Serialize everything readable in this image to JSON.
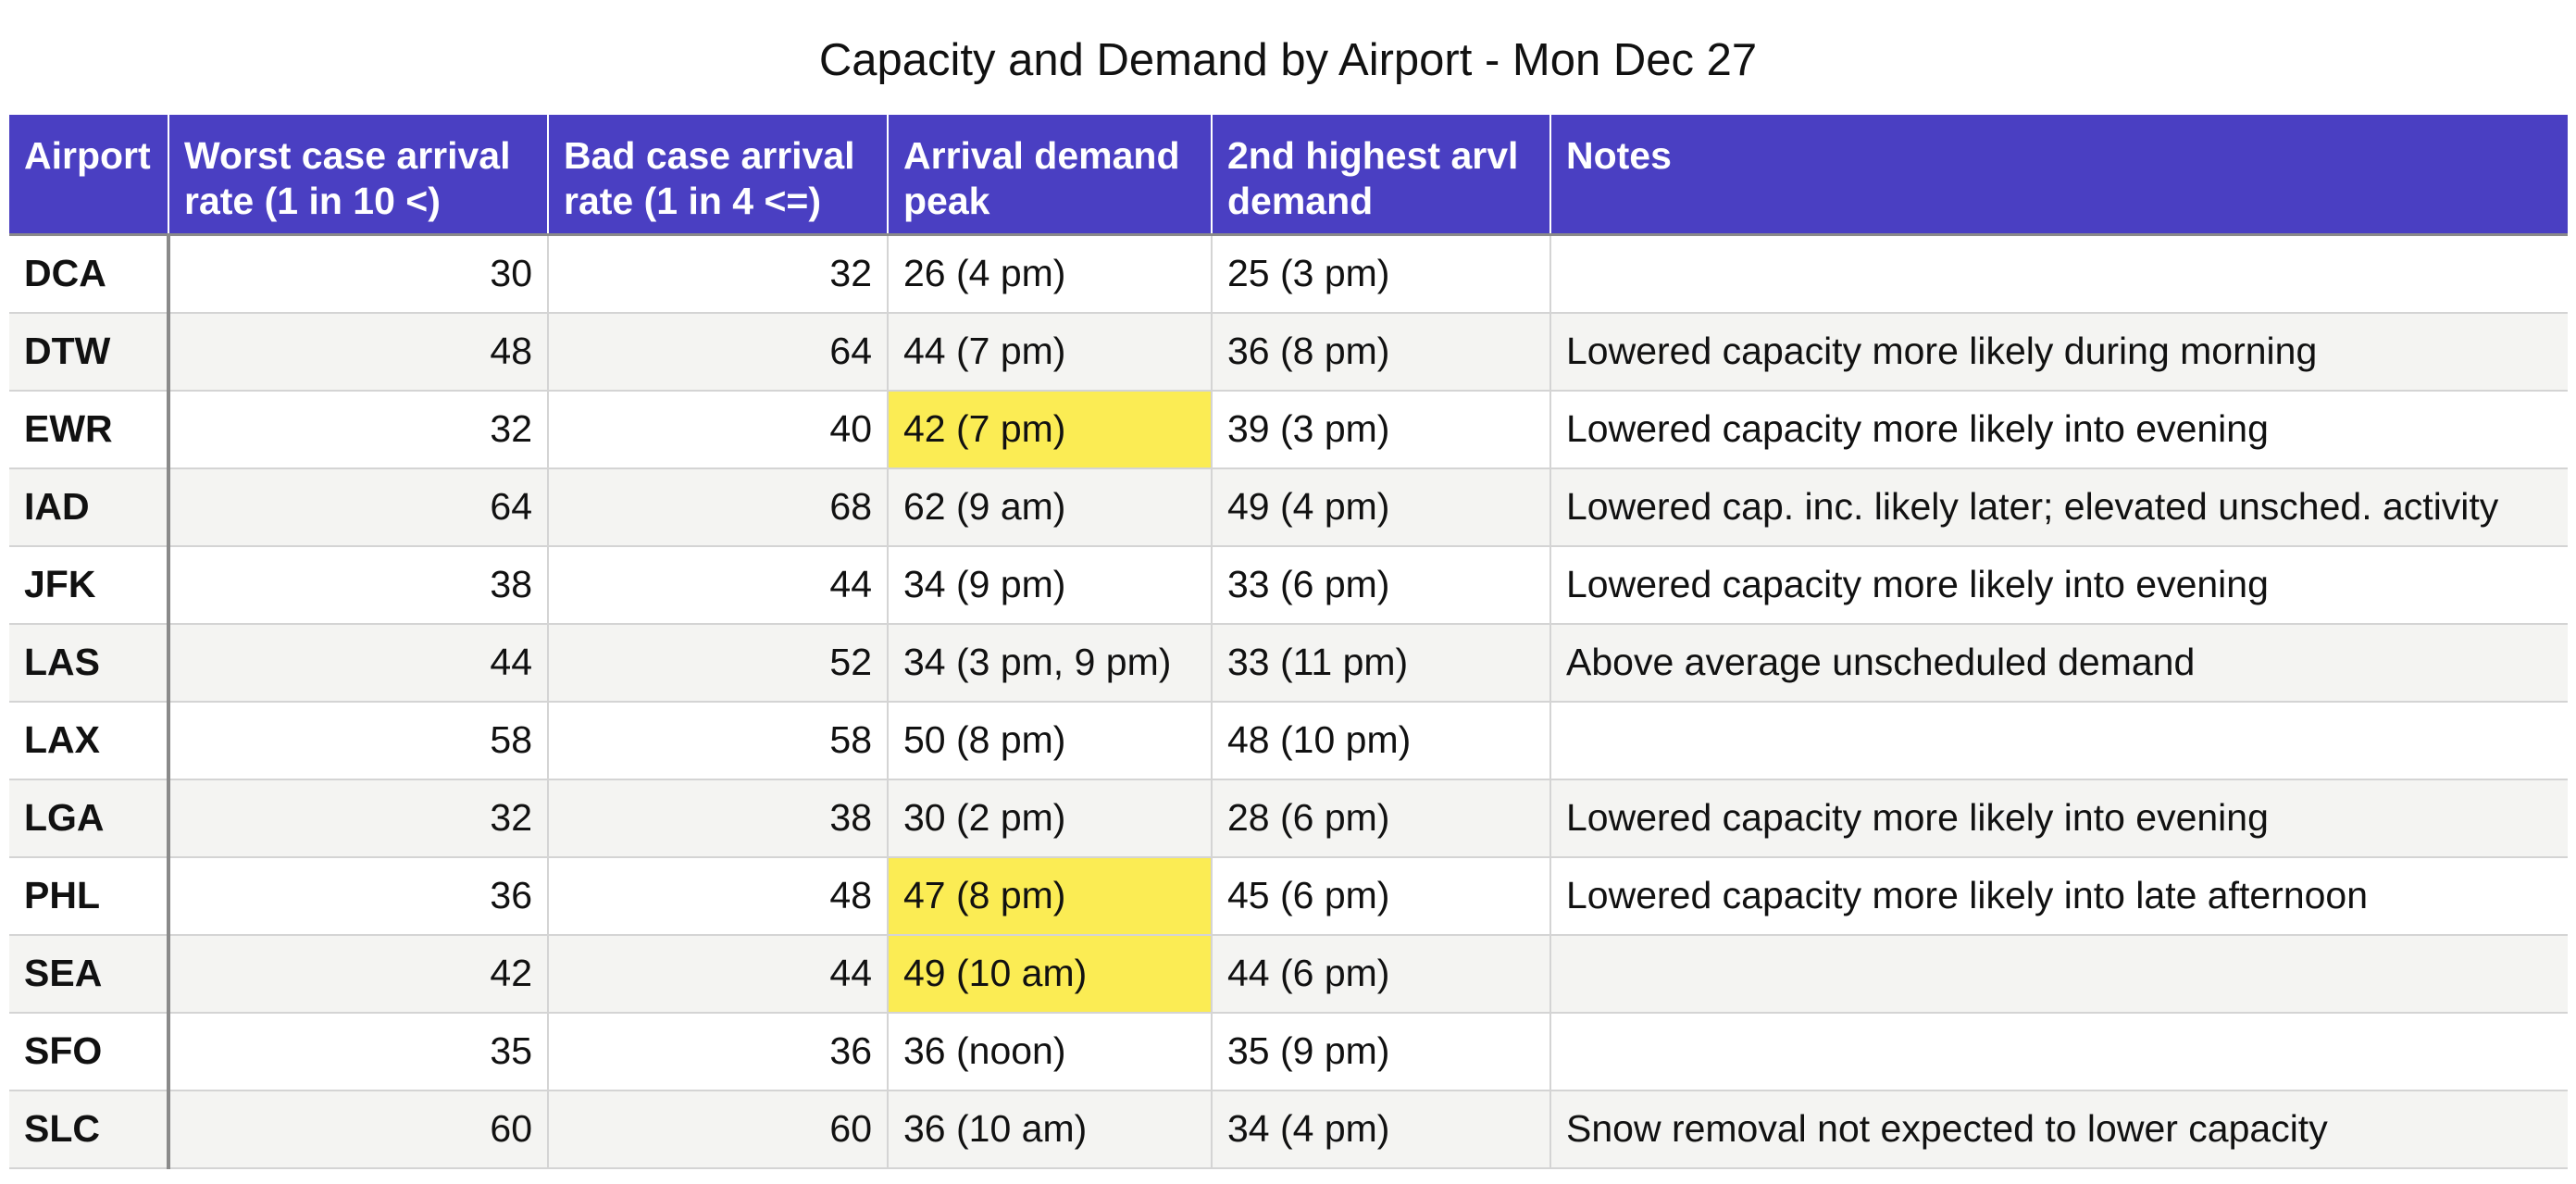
{
  "title": "Capacity and Demand by Airport - Mon Dec 27",
  "headers": [
    "Airport",
    "Worst case arrival rate (1 in 10 <)",
    "Bad case arrival rate (1 in 4 <=)",
    "Arrival demand peak",
    "2nd highest arvl demand",
    "Notes"
  ],
  "colors": {
    "header_bg": "#4a3fc2",
    "header_text": "#ffffff",
    "highlight": "#fbec54",
    "alt_row": "#f4f4f2"
  },
  "rows": [
    {
      "airport": "DCA",
      "worst": "30",
      "bad": "32",
      "peak": "26 (4 pm)",
      "peak_highlight": false,
      "second": "25 (3 pm)",
      "notes": ""
    },
    {
      "airport": "DTW",
      "worst": "48",
      "bad": "64",
      "peak": "44 (7 pm)",
      "peak_highlight": false,
      "second": "36 (8 pm)",
      "notes": "Lowered capacity more likely during morning"
    },
    {
      "airport": "EWR",
      "worst": "32",
      "bad": "40",
      "peak": "42 (7 pm)",
      "peak_highlight": true,
      "second": "39 (3 pm)",
      "notes": "Lowered capacity more likely into evening"
    },
    {
      "airport": "IAD",
      "worst": "64",
      "bad": "68",
      "peak": "62 (9 am)",
      "peak_highlight": false,
      "second": "49 (4 pm)",
      "notes": "Lowered cap. inc. likely later; elevated unsched. activity"
    },
    {
      "airport": "JFK",
      "worst": "38",
      "bad": "44",
      "peak": "34 (9 pm)",
      "peak_highlight": false,
      "second": "33 (6 pm)",
      "notes": "Lowered capacity more likely into evening"
    },
    {
      "airport": "LAS",
      "worst": "44",
      "bad": "52",
      "peak": "34 (3 pm, 9 pm)",
      "peak_highlight": false,
      "second": "33 (11 pm)",
      "notes": "Above average unscheduled demand"
    },
    {
      "airport": "LAX",
      "worst": "58",
      "bad": "58",
      "peak": "50 (8 pm)",
      "peak_highlight": false,
      "second": "48 (10 pm)",
      "notes": ""
    },
    {
      "airport": "LGA",
      "worst": "32",
      "bad": "38",
      "peak": "30 (2 pm)",
      "peak_highlight": false,
      "second": "28 (6 pm)",
      "notes": "Lowered capacity more likely into evening"
    },
    {
      "airport": "PHL",
      "worst": "36",
      "bad": "48",
      "peak": "47 (8 pm)",
      "peak_highlight": true,
      "second": "45 (6 pm)",
      "notes": "Lowered capacity more likely into late afternoon"
    },
    {
      "airport": "SEA",
      "worst": "42",
      "bad": "44",
      "peak": "49 (10 am)",
      "peak_highlight": true,
      "second": "44 (6 pm)",
      "notes": ""
    },
    {
      "airport": "SFO",
      "worst": "35",
      "bad": "36",
      "peak": "36 (noon)",
      "peak_highlight": false,
      "second": "35 (9 pm)",
      "notes": ""
    },
    {
      "airport": "SLC",
      "worst": "60",
      "bad": "60",
      "peak": "36 (10 am)",
      "peak_highlight": false,
      "second": "34 (4 pm)",
      "notes": "Snow removal not expected to lower capacity"
    }
  ]
}
